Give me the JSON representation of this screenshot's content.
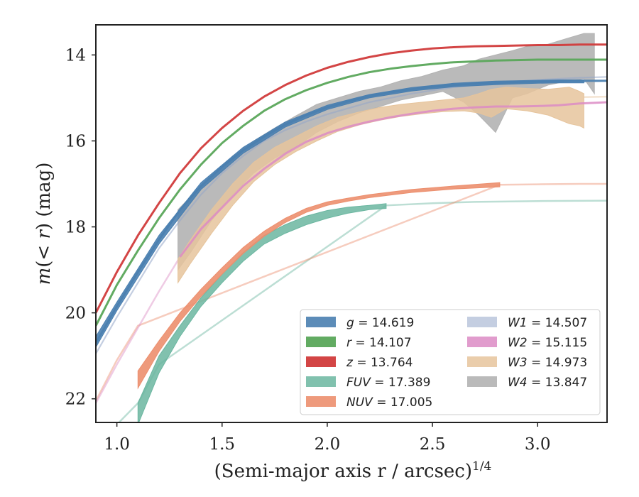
{
  "chart_data": {
    "type": "line",
    "xlabel": "(Semi-major axis r / arcsec)",
    "xlabel_power": "1/4",
    "ylabel_parts": [
      "m",
      "(< ",
      "r",
      ") (mag)"
    ],
    "xlim": [
      0.9,
      3.33
    ],
    "ylim": [
      22.55,
      13.3
    ],
    "y_inverted": true,
    "xticks": [
      1.0,
      1.5,
      2.0,
      2.5,
      3.0
    ],
    "xtick_labels": [
      "1.0",
      "1.5",
      "2.0",
      "2.5",
      "3.0"
    ],
    "yticks": [
      14,
      16,
      18,
      20,
      22
    ],
    "ytick_labels": [
      "14",
      "16",
      "18",
      "20",
      "22"
    ],
    "grid": false,
    "legend_placement": "lower-right",
    "series": [
      {
        "name": "g",
        "label_value": "14.619",
        "color": "#4a7fb0",
        "fill_alpha": 0.9,
        "line": {
          "x": [
            0.9,
            1.0,
            1.1,
            1.2,
            1.3,
            1.4,
            1.5,
            1.6,
            1.7,
            1.8,
            1.9,
            2.0,
            2.1,
            2.2,
            2.3,
            2.4,
            2.5,
            2.6,
            2.7,
            2.8,
            2.9,
            3.0,
            3.1,
            3.2,
            3.33
          ],
          "y": [
            20.7,
            19.85,
            19.05,
            18.3,
            17.6,
            17.05,
            16.6,
            16.22,
            15.9,
            15.62,
            15.4,
            15.22,
            15.08,
            14.96,
            14.87,
            14.8,
            14.74,
            14.7,
            14.67,
            14.65,
            14.63,
            14.62,
            14.61,
            14.6,
            14.6
          ]
        },
        "band": {
          "x": [
            0.9,
            1.0,
            1.2,
            1.4,
            1.6,
            1.8,
            2.0,
            2.2,
            2.4,
            2.6,
            2.8,
            3.0,
            3.1,
            3.2,
            3.22
          ],
          "y_low": [
            20.55,
            19.75,
            18.2,
            16.97,
            16.15,
            15.56,
            15.17,
            14.92,
            14.76,
            14.66,
            14.61,
            14.59,
            14.58,
            14.58,
            14.58
          ],
          "y_high": [
            20.8,
            19.95,
            18.4,
            17.13,
            16.29,
            15.68,
            15.27,
            15.0,
            14.84,
            14.74,
            14.69,
            14.66,
            14.65,
            14.65,
            14.65
          ]
        },
        "faint": {
          "x": [
            3.22,
            3.33
          ],
          "y": [
            14.62,
            14.6
          ]
        }
      },
      {
        "name": "r",
        "label_value": "14.107",
        "color": "#5aa75a",
        "fill_alpha": 0.95,
        "line": {
          "x": [
            0.9,
            1.0,
            1.1,
            1.2,
            1.3,
            1.4,
            1.5,
            1.6,
            1.7,
            1.8,
            1.9,
            2.0,
            2.1,
            2.2,
            2.3,
            2.4,
            2.5,
            2.6,
            2.7,
            2.8,
            2.9,
            3.0,
            3.1,
            3.2,
            3.33
          ],
          "y": [
            20.3,
            19.35,
            18.55,
            17.8,
            17.13,
            16.55,
            16.05,
            15.65,
            15.3,
            15.03,
            14.82,
            14.65,
            14.51,
            14.4,
            14.32,
            14.26,
            14.21,
            14.17,
            14.15,
            14.13,
            14.12,
            14.11,
            14.11,
            14.11,
            14.11
          ]
        }
      },
      {
        "name": "z",
        "label_value": "13.764",
        "color": "#d13b3b",
        "fill_alpha": 0.95,
        "line": {
          "x": [
            0.9,
            1.0,
            1.1,
            1.2,
            1.3,
            1.4,
            1.5,
            1.6,
            1.7,
            1.8,
            1.9,
            2.0,
            2.1,
            2.2,
            2.3,
            2.4,
            2.5,
            2.6,
            2.7,
            2.8,
            2.9,
            3.0,
            3.1,
            3.2,
            3.33
          ],
          "y": [
            20.0,
            19.05,
            18.2,
            17.45,
            16.75,
            16.17,
            15.7,
            15.3,
            14.97,
            14.7,
            14.48,
            14.3,
            14.16,
            14.05,
            13.96,
            13.9,
            13.85,
            13.82,
            13.8,
            13.79,
            13.78,
            13.77,
            13.77,
            13.76,
            13.76
          ]
        }
      },
      {
        "name": "FUV",
        "label_value": "17.389",
        "color": "#6bb6a0",
        "fill_alpha": 0.85,
        "band": {
          "x": [
            1.1,
            1.2,
            1.3,
            1.4,
            1.5,
            1.6,
            1.7,
            1.8,
            1.9,
            2.0,
            2.1,
            2.2,
            2.28
          ],
          "y_low": [
            22.1,
            21.0,
            20.3,
            19.65,
            19.1,
            18.6,
            18.2,
            17.95,
            17.75,
            17.62,
            17.54,
            17.5,
            17.46
          ],
          "y_high": [
            22.6,
            21.4,
            20.55,
            19.85,
            19.3,
            18.8,
            18.4,
            18.15,
            17.95,
            17.8,
            17.68,
            17.6,
            17.57
          ]
        },
        "faint": {
          "x": [
            1.0,
            1.1,
            1.2,
            2.28,
            2.5,
            2.7,
            3.0,
            3.33
          ],
          "y": [
            22.6,
            22.1,
            21.2,
            17.5,
            17.45,
            17.42,
            17.4,
            17.39
          ]
        }
      },
      {
        "name": "NUV",
        "label_value": "17.005",
        "color": "#ec8f6e",
        "fill_alpha": 0.9,
        "band": {
          "x": [
            1.1,
            1.2,
            1.3,
            1.4,
            1.5,
            1.6,
            1.7,
            1.8,
            1.9,
            2.0,
            2.1,
            2.2,
            2.4,
            2.6,
            2.82
          ],
          "y_low": [
            21.35,
            20.65,
            20.0,
            19.45,
            18.95,
            18.48,
            18.1,
            17.8,
            17.57,
            17.42,
            17.33,
            17.25,
            17.13,
            17.05,
            16.97
          ],
          "y_high": [
            21.75,
            20.9,
            20.2,
            19.62,
            19.1,
            18.62,
            18.22,
            17.9,
            17.66,
            17.5,
            17.4,
            17.32,
            17.2,
            17.12,
            17.07
          ]
        },
        "faint": {
          "x": [
            0.9,
            1.0,
            1.1,
            2.82,
            3.0,
            3.2,
            3.33
          ],
          "y": [
            22.05,
            21.1,
            20.3,
            17.02,
            17.01,
            17.0,
            17.0
          ]
        }
      },
      {
        "name": "W1",
        "label_value": "14.507",
        "color": "#93a6c8",
        "fill_alpha": 0.55,
        "line": {
          "x": [
            0.9,
            1.0,
            1.1,
            1.2,
            1.3,
            1.4,
            1.5,
            1.6,
            1.7,
            1.8,
            1.9,
            2.0,
            2.2,
            2.4,
            2.6,
            2.8,
            3.0,
            3.2,
            3.33
          ],
          "y": [
            20.95,
            20.1,
            19.3,
            18.5,
            17.85,
            17.25,
            16.75,
            16.35,
            16.0,
            15.75,
            15.55,
            15.38,
            15.1,
            14.9,
            14.75,
            14.65,
            14.58,
            14.53,
            14.51
          ]
        }
      },
      {
        "name": "W2",
        "label_value": "15.115",
        "color": "#dc8bc4",
        "fill_alpha": 0.85,
        "line": {
          "x": [
            1.3,
            1.4,
            1.5,
            1.6,
            1.7,
            1.8,
            1.9,
            2.0,
            2.1,
            2.2,
            2.3,
            2.4,
            2.5,
            2.6,
            2.7,
            2.8,
            2.9,
            3.0,
            3.1,
            3.2,
            3.33
          ],
          "y": [
            18.7,
            18.05,
            17.55,
            17.05,
            16.65,
            16.3,
            16.02,
            15.82,
            15.67,
            15.55,
            15.45,
            15.37,
            15.3,
            15.25,
            15.22,
            15.2,
            15.2,
            15.19,
            15.17,
            15.13,
            15.1
          ]
        },
        "faint": {
          "x": [
            0.9,
            1.0,
            1.1,
            1.2,
            1.3
          ],
          "y": [
            22.1,
            21.2,
            20.35,
            19.5,
            18.7
          ]
        }
      },
      {
        "name": "W3",
        "label_value": "14.973",
        "color": "#e6c49c",
        "fill_alpha": 0.85,
        "band": {
          "x": [
            1.29,
            1.35,
            1.45,
            1.55,
            1.65,
            1.75,
            1.85,
            1.95,
            2.05,
            2.15,
            2.25,
            2.35,
            2.45,
            2.55,
            2.65,
            2.72,
            2.78,
            2.85,
            2.95,
            3.05,
            3.15,
            3.2,
            3.22
          ],
          "y_low": [
            18.75,
            18.3,
            17.6,
            17.0,
            16.5,
            16.15,
            15.9,
            15.65,
            15.45,
            15.33,
            15.22,
            15.15,
            15.1,
            15.05,
            15.0,
            14.9,
            14.8,
            14.75,
            14.78,
            14.8,
            14.75,
            14.85,
            14.9
          ],
          "y_high": [
            19.3,
            18.85,
            18.15,
            17.5,
            16.95,
            16.55,
            16.25,
            16.0,
            15.78,
            15.63,
            15.52,
            15.43,
            15.37,
            15.32,
            15.3,
            15.35,
            15.45,
            15.25,
            15.3,
            15.4,
            15.6,
            15.65,
            15.7
          ]
        },
        "faint": {
          "x": [
            3.22,
            3.33
          ],
          "y": [
            14.98,
            14.97
          ]
        }
      },
      {
        "name": "W4",
        "label_value": "13.847",
        "color": "#b3b3b3",
        "fill_alpha": 0.9,
        "band": {
          "x": [
            1.29,
            1.35,
            1.45,
            1.55,
            1.65,
            1.75,
            1.85,
            1.95,
            2.05,
            2.15,
            2.25,
            2.35,
            2.45,
            2.55,
            2.65,
            2.72,
            2.8,
            2.88,
            2.95,
            3.05,
            3.15,
            3.22,
            3.27
          ],
          "y_low": [
            17.6,
            17.3,
            16.85,
            16.35,
            16.0,
            15.7,
            15.42,
            15.15,
            15.0,
            14.85,
            14.75,
            14.6,
            14.5,
            14.35,
            14.25,
            14.1,
            14.0,
            13.9,
            13.8,
            13.75,
            13.6,
            13.5,
            13.5
          ],
          "y_high": [
            19.0,
            18.6,
            17.85,
            17.25,
            16.75,
            16.4,
            16.15,
            15.8,
            15.55,
            15.35,
            15.2,
            15.05,
            14.95,
            14.85,
            15.1,
            15.4,
            15.8,
            15.0,
            14.9,
            14.7,
            14.6,
            14.55,
            14.9
          ]
        }
      }
    ]
  }
}
